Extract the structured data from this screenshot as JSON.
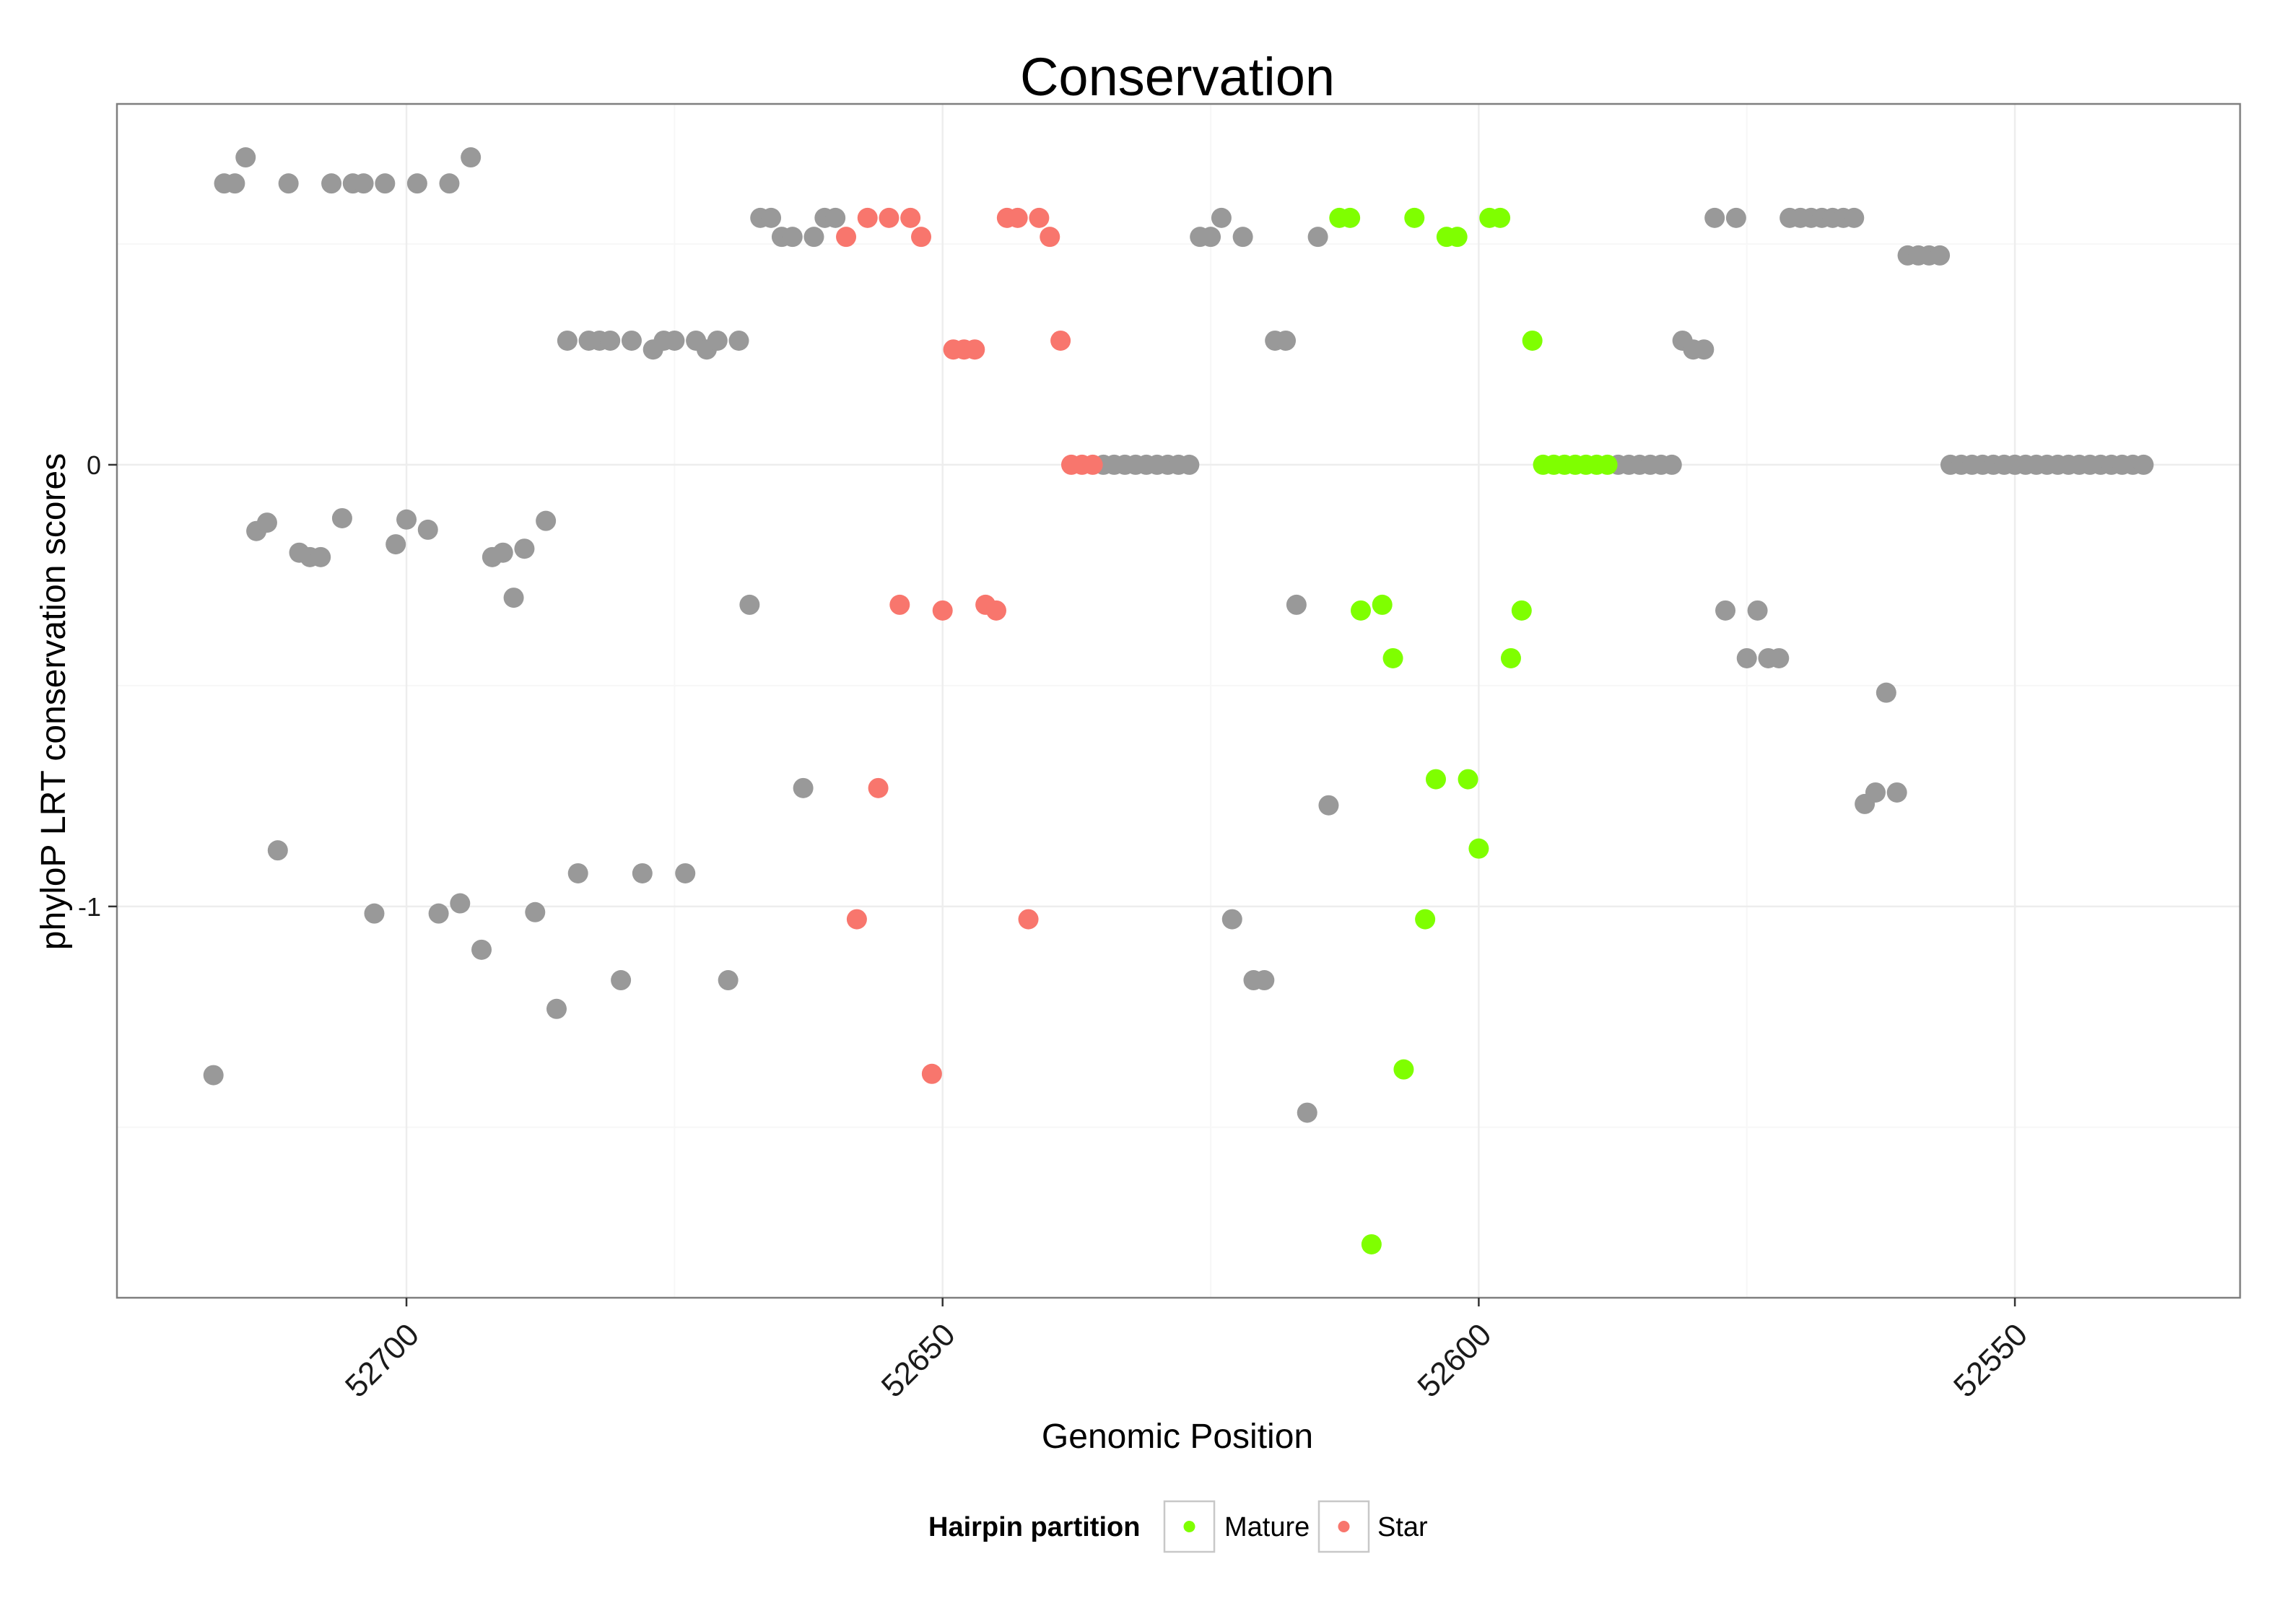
{
  "chart_data": {
    "type": "scatter",
    "title": "Conservation",
    "xlabel": "Genomic Position",
    "ylabel": "phyloP LRT conservation scores",
    "xlim": [
      52727,
      52529
    ],
    "ylim": [
      -1.886,
      0.817
    ],
    "x_reversed": true,
    "grid": true,
    "xticks": [
      {
        "value": 52700,
        "label": "52700"
      },
      {
        "value": 52650,
        "label": "52650"
      },
      {
        "value": 52600,
        "label": "52600"
      },
      {
        "value": 52550,
        "label": "52550"
      }
    ],
    "xticks_minor": [
      52675,
      52625,
      52575
    ],
    "yticks": [
      {
        "value": 0,
        "label": "0"
      },
      {
        "value": -1,
        "label": "-1"
      }
    ],
    "yticks_minor": [
      0.5,
      -0.5,
      -1.5
    ],
    "legend": {
      "title": "Hairpin partition",
      "position": "bottom",
      "entries": [
        {
          "name": "Mature",
          "color": "#7fff00"
        },
        {
          "name": "Star",
          "color": "#f8766d"
        }
      ]
    },
    "series": [
      {
        "legend": null,
        "color": "#999999",
        "points": [
          [
            52718,
            -1.382
          ],
          [
            52717,
            0.637
          ],
          [
            52716,
            0.637
          ],
          [
            52715,
            0.696
          ],
          [
            52714,
            -0.15
          ],
          [
            52713,
            -0.131
          ],
          [
            52712,
            -0.873
          ],
          [
            52711,
            0.637
          ],
          [
            52710,
            -0.199
          ],
          [
            52709,
            -0.209
          ],
          [
            52708,
            -0.209
          ],
          [
            52707,
            0.637
          ],
          [
            52706,
            -0.121
          ],
          [
            52705,
            0.637
          ],
          [
            52704,
            0.637
          ],
          [
            52703,
            -1.016
          ],
          [
            52702,
            0.637
          ],
          [
            52701,
            -0.18
          ],
          [
            52700,
            -0.124
          ],
          [
            52699,
            0.637
          ],
          [
            52698,
            -0.147
          ],
          [
            52697,
            -1.016
          ],
          [
            52696,
            0.637
          ],
          [
            52695,
            -0.993
          ],
          [
            52694,
            0.696
          ],
          [
            52693,
            -1.098
          ],
          [
            52692,
            -0.209
          ],
          [
            52691,
            -0.199
          ],
          [
            52690,
            -0.301
          ],
          [
            52689,
            -0.19
          ],
          [
            52688,
            -1.013
          ],
          [
            52687,
            -0.127
          ],
          [
            52686,
            -1.232
          ],
          [
            52685,
            0.281
          ],
          [
            52684,
            -0.925
          ],
          [
            52683,
            0.281
          ],
          [
            52682,
            0.281
          ],
          [
            52681,
            0.281
          ],
          [
            52680,
            -1.167
          ],
          [
            52679,
            0.281
          ],
          [
            52678,
            -0.925
          ],
          [
            52677,
            0.261
          ],
          [
            52676,
            0.281
          ],
          [
            52675,
            0.281
          ],
          [
            52674,
            -0.925
          ],
          [
            52673,
            0.281
          ],
          [
            52672,
            0.261
          ],
          [
            52671,
            0.281
          ],
          [
            52670,
            -1.167
          ],
          [
            52669,
            0.281
          ],
          [
            52668,
            -0.317
          ],
          [
            52667,
            0.559
          ],
          [
            52666,
            0.559
          ],
          [
            52665,
            0.516
          ],
          [
            52664,
            0.516
          ],
          [
            52663,
            -0.732
          ],
          [
            52662,
            0.516
          ],
          [
            52661,
            0.559
          ],
          [
            52660,
            0.559
          ],
          [
            52635,
            0
          ],
          [
            52634,
            0
          ],
          [
            52633,
            0
          ],
          [
            52632,
            0
          ],
          [
            52631,
            0
          ],
          [
            52630,
            0
          ],
          [
            52629,
            0
          ],
          [
            52628,
            0
          ],
          [
            52627,
            0
          ],
          [
            52626,
            0.516
          ],
          [
            52625,
            0.516
          ],
          [
            52624,
            0.559
          ],
          [
            52623,
            -1.029
          ],
          [
            52622,
            0.516
          ],
          [
            52621,
            -1.167
          ],
          [
            52620,
            -1.167
          ],
          [
            52619,
            0.281
          ],
          [
            52618,
            0.281
          ],
          [
            52617,
            -0.317
          ],
          [
            52616,
            -1.467
          ],
          [
            52615,
            0.516
          ],
          [
            52614,
            -0.771
          ],
          [
            52587,
            0
          ],
          [
            52586,
            0
          ],
          [
            52585,
            0
          ],
          [
            52584,
            0
          ],
          [
            52583,
            0
          ],
          [
            52582,
            0
          ],
          [
            52581,
            0.281
          ],
          [
            52580,
            0.261
          ],
          [
            52579,
            0.261
          ],
          [
            52578,
            0.559
          ],
          [
            52577,
            -0.33
          ],
          [
            52576,
            0.559
          ],
          [
            52575,
            -0.438
          ],
          [
            52574,
            -0.33
          ],
          [
            52573,
            -0.438
          ],
          [
            52572,
            -0.438
          ],
          [
            52571,
            0.559
          ],
          [
            52570,
            0.559
          ],
          [
            52569,
            0.559
          ],
          [
            52568,
            0.559
          ],
          [
            52567,
            0.559
          ],
          [
            52566,
            0.559
          ],
          [
            52565,
            0.559
          ],
          [
            52564,
            -0.768
          ],
          [
            52563,
            -0.742
          ],
          [
            52562,
            -0.516
          ],
          [
            52561,
            -0.742
          ],
          [
            52560,
            0.474
          ],
          [
            52559,
            0.474
          ],
          [
            52558,
            0.474
          ],
          [
            52557,
            0.474
          ],
          [
            52556,
            0
          ],
          [
            52555,
            0
          ],
          [
            52554,
            0
          ],
          [
            52553,
            0
          ],
          [
            52552,
            0
          ],
          [
            52551,
            0
          ],
          [
            52550,
            0
          ],
          [
            52549,
            0
          ],
          [
            52548,
            0
          ],
          [
            52547,
            0
          ],
          [
            52546,
            0
          ],
          [
            52545,
            0
          ],
          [
            52544,
            0
          ],
          [
            52543,
            0
          ],
          [
            52542,
            0
          ],
          [
            52541,
            0
          ],
          [
            52540,
            0
          ],
          [
            52539,
            0
          ],
          [
            52538,
            0
          ]
        ]
      },
      {
        "legend": 0,
        "color": "#7fff00",
        "points": [
          [
            52613,
            0.559
          ],
          [
            52612,
            0.559
          ],
          [
            52611,
            -0.33
          ],
          [
            52610,
            -1.765
          ],
          [
            52609,
            -0.317
          ],
          [
            52608,
            -0.438
          ],
          [
            52607,
            -1.369
          ],
          [
            52606,
            0.559
          ],
          [
            52605,
            -1.029
          ],
          [
            52604,
            -0.712
          ],
          [
            52603,
            0.516
          ],
          [
            52602,
            0.516
          ],
          [
            52601,
            -0.712
          ],
          [
            52600,
            -0.869
          ],
          [
            52599,
            0.559
          ],
          [
            52598,
            0.559
          ],
          [
            52597,
            -0.438
          ],
          [
            52596,
            -0.33
          ],
          [
            52595,
            0.281
          ],
          [
            52594,
            0
          ],
          [
            52593,
            0
          ],
          [
            52592,
            0
          ],
          [
            52591,
            0
          ],
          [
            52590,
            0
          ],
          [
            52589,
            0
          ],
          [
            52588,
            0
          ]
        ]
      },
      {
        "legend": 1,
        "color": "#f8766d",
        "points": [
          [
            52659,
            0.516
          ],
          [
            52658,
            -1.029
          ],
          [
            52657,
            0.559
          ],
          [
            52656,
            -0.732
          ],
          [
            52655,
            0.559
          ],
          [
            52654,
            -0.317
          ],
          [
            52653,
            0.559
          ],
          [
            52652,
            0.516
          ],
          [
            52651,
            -1.379
          ],
          [
            52650,
            -0.33
          ],
          [
            52649,
            0.261
          ],
          [
            52648,
            0.261
          ],
          [
            52647,
            0.261
          ],
          [
            52646,
            -0.317
          ],
          [
            52645,
            -0.33
          ],
          [
            52644,
            0.559
          ],
          [
            52643,
            0.559
          ],
          [
            52642,
            -1.029
          ],
          [
            52641,
            0.559
          ],
          [
            52640,
            0.516
          ],
          [
            52639,
            0.281
          ],
          [
            52638,
            0
          ],
          [
            52637,
            0
          ],
          [
            52636,
            0
          ]
        ]
      }
    ]
  }
}
